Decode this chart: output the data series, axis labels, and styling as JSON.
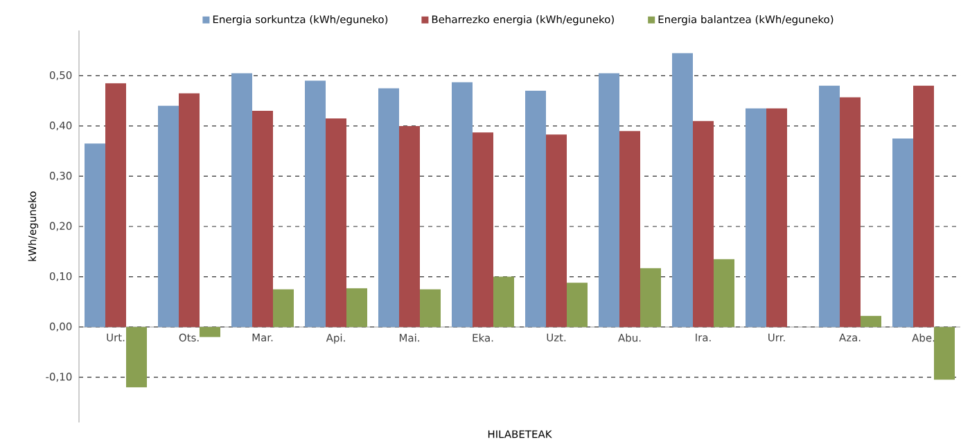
{
  "chart_data": {
    "type": "bar",
    "xlabel": "HILABETEAK",
    "ylabel": "kWh/eguneko",
    "categories": [
      "Urt.",
      "Ots.",
      "Mar.",
      "Api.",
      "Mai.",
      "Eka.",
      "Uzt.",
      "Abu.",
      "Ira.",
      "Urr.",
      "Aza.",
      "Abe."
    ],
    "series": [
      {
        "name": "Energia sorkuntza (kWh/eguneko)",
        "color": "#7a9cc4",
        "values": [
          0.365,
          0.44,
          0.505,
          0.49,
          0.475,
          0.487,
          0.47,
          0.505,
          0.545,
          0.435,
          0.48,
          0.375
        ]
      },
      {
        "name": "Beharrezko energia (kWh/eguneko)",
        "color": "#a84b4b",
        "values": [
          0.485,
          0.465,
          0.43,
          0.415,
          0.4,
          0.387,
          0.383,
          0.39,
          0.41,
          0.435,
          0.457,
          0.48
        ]
      },
      {
        "name": "Energia balantzea (kWh/eguneko)",
        "color": "#8aa052",
        "values": [
          -0.12,
          -0.02,
          0.075,
          0.077,
          0.075,
          0.1,
          0.088,
          0.117,
          0.135,
          0,
          0.022,
          -0.105
        ]
      }
    ],
    "ylim": [
      -0.19,
      0.59
    ],
    "yticks": [
      {
        "value": -0.1,
        "label": "-0,10"
      },
      {
        "value": 0,
        "label": "0,00"
      },
      {
        "value": 0.1,
        "label": "0,10"
      },
      {
        "value": 0.2,
        "label": "0,20"
      },
      {
        "value": 0.3,
        "label": "0,30"
      },
      {
        "value": 0.4,
        "label": "0,40"
      },
      {
        "value": 0.5,
        "label": "0,50"
      }
    ],
    "grid": "y",
    "legend": "top"
  }
}
